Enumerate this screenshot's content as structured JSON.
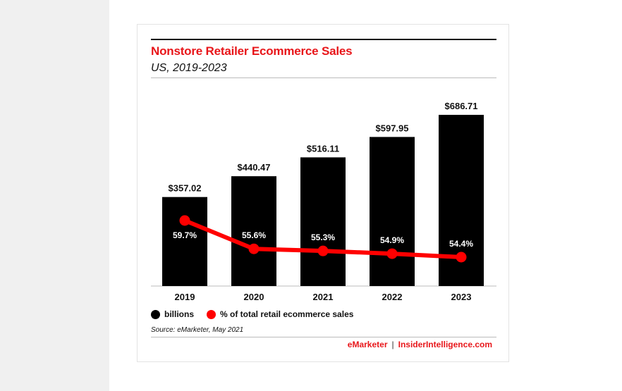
{
  "chart_data": {
    "type": "bar",
    "title": "Nonstore Retailer Ecommerce Sales",
    "subtitle": "US, 2019-2023",
    "categories": [
      "2019",
      "2020",
      "2021",
      "2022",
      "2023"
    ],
    "series": [
      {
        "name": "billions",
        "type": "bar",
        "values": [
          357.02,
          440.47,
          516.11,
          597.95,
          686.71
        ],
        "labels": [
          "$357.02",
          "$440.47",
          "$516.11",
          "$597.95",
          "$686.71"
        ],
        "color": "#000000"
      },
      {
        "name": "% of total retail ecommerce sales",
        "type": "line",
        "values": [
          59.7,
          55.6,
          55.3,
          54.9,
          54.4
        ],
        "labels": [
          "59.7%",
          "55.6%",
          "55.3%",
          "54.9%",
          "54.4%"
        ],
        "color": "#ff0000"
      }
    ],
    "legend": "bottom-left",
    "grid": false,
    "source": "Source: eMarketer, May 2021"
  },
  "footer": {
    "brand_left": "eMarketer",
    "separator": "|",
    "brand_right": "InsiderIntelligence.com"
  }
}
